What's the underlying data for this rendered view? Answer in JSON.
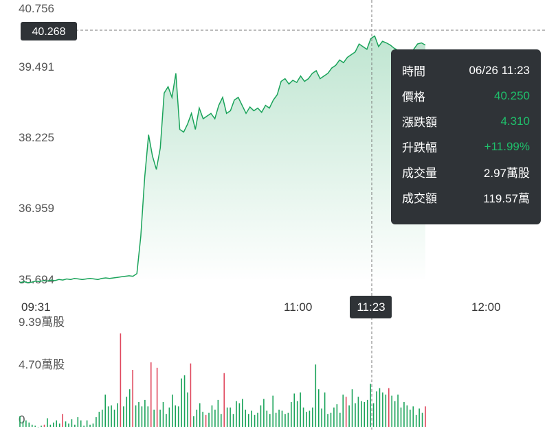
{
  "chart_data": {
    "type": "area",
    "y_ticks": [
      "40.756",
      "39.491",
      "38.225",
      "36.959",
      "35.694"
    ],
    "ylim": [
      35.694,
      40.756
    ],
    "x_ticks": [
      "09:31",
      "11:00",
      "12:00"
    ],
    "price_highlight": "40.268",
    "time_highlight": "11:23",
    "volume_ticks": [
      "9.39萬股",
      "4.70萬股",
      "0"
    ],
    "volume_max": 9.39,
    "colors": {
      "line": "#1aa35a",
      "up": "#1aa35a",
      "down": "#e0475d",
      "crosshair": "#777777"
    },
    "tooltip": {
      "rows": [
        {
          "label": "時間",
          "value": "06/26 11:23",
          "color": "#ffffff"
        },
        {
          "label": "價格",
          "value": "40.250",
          "color": "#1fbf6b"
        },
        {
          "label": "漲跌額",
          "value": "4.310",
          "color": "#1fbf6b"
        },
        {
          "label": "升跌幅",
          "value": "+11.99%",
          "color": "#1fbf6b"
        },
        {
          "label": "成交量",
          "value": "2.97萬股",
          "color": "#ffffff"
        },
        {
          "label": "成交額",
          "value": "119.57萬",
          "color": "#ffffff"
        }
      ]
    },
    "price_series": [
      35.63,
      35.65,
      35.63,
      35.64,
      35.66,
      35.65,
      35.67,
      35.66,
      35.68,
      35.67,
      35.69,
      35.68,
      35.7,
      35.69,
      35.71,
      35.7,
      35.69,
      35.7,
      35.71,
      35.7,
      35.69,
      35.71,
      35.72,
      35.71,
      35.72,
      35.73,
      35.74,
      35.75,
      35.76,
      35.75,
      35.8,
      36.5,
      37.6,
      38.4,
      38.0,
      37.75,
      38.15,
      39.18,
      39.3,
      39.1,
      39.55,
      38.5,
      38.45,
      38.6,
      38.8,
      38.5,
      38.9,
      38.7,
      38.75,
      38.8,
      38.7,
      38.95,
      39.1,
      38.8,
      38.85,
      39.05,
      39.1,
      38.95,
      38.8,
      38.92,
      38.85,
      38.9,
      38.82,
      38.95,
      38.9,
      39.05,
      39.15,
      39.4,
      39.45,
      39.35,
      39.42,
      39.38,
      39.5,
      39.4,
      39.45,
      39.55,
      39.6,
      39.45,
      39.5,
      39.55,
      39.65,
      39.7,
      39.8,
      39.75,
      39.85,
      39.9,
      39.95,
      40.1,
      40.05,
      40.0,
      40.2,
      40.25,
      40.05,
      40.15,
      40.12,
      40.08,
      40.02,
      39.98,
      39.9,
      39.8,
      39.85,
      40.0,
      40.1,
      40.12,
      40.08
    ],
    "volume_series": [
      [
        1.0,
        "up"
      ],
      [
        0.5,
        "up"
      ],
      [
        0.6,
        "up"
      ],
      [
        0.4,
        "up"
      ],
      [
        0.2,
        "up"
      ],
      [
        0.1,
        "up"
      ],
      [
        0.0,
        "up"
      ],
      [
        0.1,
        "up"
      ],
      [
        0.2,
        "down"
      ],
      [
        0.8,
        "up"
      ],
      [
        0.2,
        "up"
      ],
      [
        0.4,
        "up"
      ],
      [
        0.6,
        "up"
      ],
      [
        0.3,
        "up"
      ],
      [
        1.2,
        "down"
      ],
      [
        0.5,
        "up"
      ],
      [
        0.3,
        "up"
      ],
      [
        0.7,
        "up"
      ],
      [
        0.2,
        "up"
      ],
      [
        0.9,
        "up"
      ],
      [
        0.6,
        "up"
      ],
      [
        0.1,
        "up"
      ],
      [
        0.6,
        "up"
      ],
      [
        0.2,
        "up"
      ],
      [
        0.3,
        "up"
      ],
      [
        0.9,
        "up"
      ],
      [
        1.4,
        "up"
      ],
      [
        1.6,
        "up"
      ],
      [
        3.0,
        "up"
      ],
      [
        1.9,
        "up"
      ],
      [
        2.0,
        "up"
      ],
      [
        1.6,
        "up"
      ],
      [
        2.2,
        "up"
      ],
      [
        8.7,
        "down"
      ],
      [
        1.9,
        "up"
      ],
      [
        2.8,
        "up"
      ],
      [
        3.5,
        "up"
      ],
      [
        5.3,
        "down"
      ],
      [
        2.0,
        "up"
      ],
      [
        2.3,
        "up"
      ],
      [
        1.9,
        "up"
      ],
      [
        2.5,
        "up"
      ],
      [
        1.9,
        "up"
      ],
      [
        6.0,
        "down"
      ],
      [
        1.6,
        "up"
      ],
      [
        5.5,
        "down"
      ],
      [
        1.6,
        "up"
      ],
      [
        2.3,
        "up"
      ],
      [
        1.2,
        "up"
      ],
      [
        1.8,
        "up"
      ],
      [
        3.0,
        "up"
      ],
      [
        2.0,
        "up"
      ],
      [
        1.9,
        "up"
      ],
      [
        4.5,
        "up"
      ],
      [
        4.8,
        "up"
      ],
      [
        3.2,
        "up"
      ],
      [
        5.9,
        "down"
      ],
      [
        1.0,
        "up"
      ],
      [
        1.6,
        "up"
      ],
      [
        2.2,
        "up"
      ],
      [
        1.4,
        "up"
      ],
      [
        1.1,
        "down"
      ],
      [
        1.3,
        "up"
      ],
      [
        2.0,
        "up"
      ],
      [
        1.6,
        "up"
      ],
      [
        2.5,
        "up"
      ],
      [
        1.2,
        "up"
      ],
      [
        5.0,
        "down"
      ],
      [
        1.8,
        "up"
      ],
      [
        1.8,
        "up"
      ],
      [
        1.2,
        "up"
      ],
      [
        2.4,
        "up"
      ],
      [
        2.2,
        "up"
      ],
      [
        2.6,
        "up"
      ],
      [
        1.6,
        "up"
      ],
      [
        1.2,
        "up"
      ],
      [
        1.5,
        "up"
      ],
      [
        1.1,
        "up"
      ],
      [
        1.3,
        "up"
      ],
      [
        2.0,
        "up"
      ],
      [
        2.6,
        "up"
      ],
      [
        1.5,
        "up"
      ],
      [
        1.2,
        "up"
      ],
      [
        2.9,
        "up"
      ],
      [
        1.3,
        "up"
      ],
      [
        1.6,
        "up"
      ],
      [
        1.5,
        "up"
      ],
      [
        1.2,
        "up"
      ],
      [
        1.3,
        "up"
      ],
      [
        2.3,
        "up"
      ],
      [
        3.1,
        "up"
      ],
      [
        2.4,
        "up"
      ],
      [
        3.2,
        "up"
      ],
      [
        1.8,
        "up"
      ],
      [
        1.4,
        "up"
      ],
      [
        1.5,
        "up"
      ],
      [
        1.8,
        "up"
      ],
      [
        5.8,
        "up"
      ],
      [
        3.5,
        "up"
      ],
      [
        1.7,
        "up"
      ],
      [
        3.2,
        "up"
      ],
      [
        1.2,
        "up"
      ],
      [
        1.3,
        "up"
      ],
      [
        1.8,
        "up"
      ],
      [
        2.1,
        "up"
      ],
      [
        1.3,
        "up"
      ],
      [
        3.0,
        "up"
      ],
      [
        2.8,
        "down"
      ],
      [
        2.0,
        "up"
      ],
      [
        3.5,
        "up"
      ],
      [
        2.2,
        "up"
      ],
      [
        2.8,
        "up"
      ],
      [
        2.4,
        "up"
      ],
      [
        2.3,
        "up"
      ],
      [
        2.5,
        "up"
      ],
      [
        4.0,
        "up"
      ],
      [
        2.2,
        "up"
      ],
      [
        3.3,
        "up"
      ],
      [
        3.6,
        "up"
      ],
      [
        3.2,
        "up"
      ],
      [
        3.0,
        "up"
      ],
      [
        3.6,
        "down"
      ],
      [
        2.9,
        "up"
      ],
      [
        2.4,
        "up"
      ],
      [
        3.0,
        "up"
      ],
      [
        1.8,
        "up"
      ],
      [
        2.3,
        "up"
      ],
      [
        2.0,
        "up"
      ],
      [
        1.6,
        "up"
      ],
      [
        1.9,
        "up"
      ],
      [
        1.1,
        "up"
      ],
      [
        1.7,
        "up"
      ],
      [
        1.3,
        "up"
      ],
      [
        1.9,
        "down"
      ]
    ]
  }
}
